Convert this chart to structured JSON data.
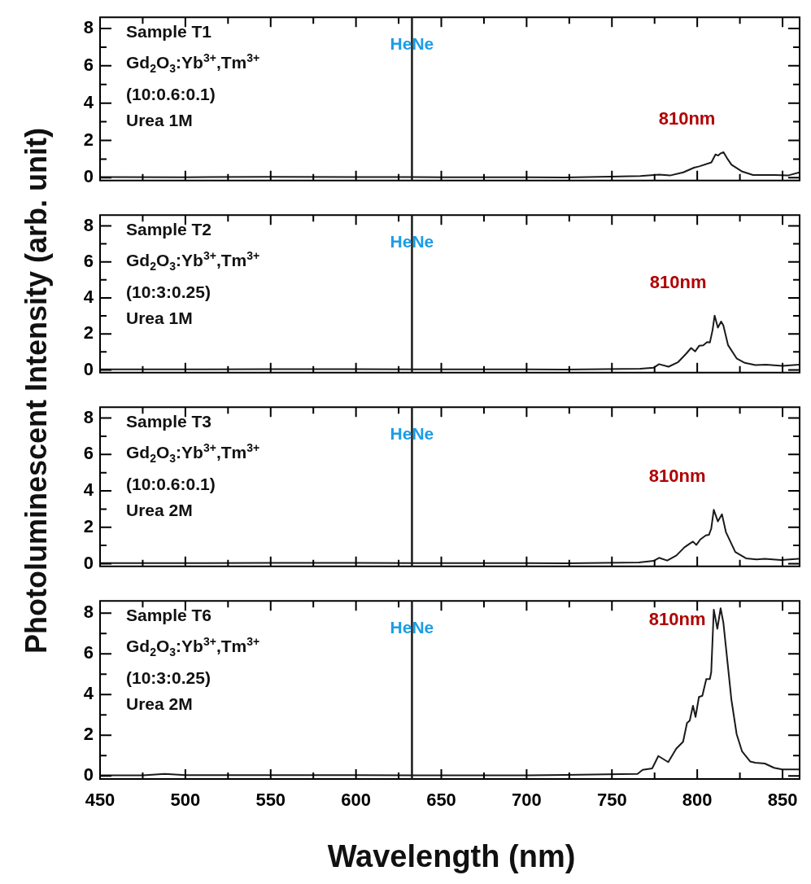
{
  "chart_data": [
    {
      "type": "line",
      "ylabel": "Photoluminescent Intensity (arb. unit)",
      "xlim": [
        450,
        860
      ],
      "ylim": [
        -0.15,
        8.6
      ],
      "xticks": [
        450,
        {
          "value": 475,
          "label": null
        },
        500,
        {
          "value": 525,
          "label": null
        },
        550,
        {
          "value": 575,
          "label": null
        },
        600,
        {
          "value": 625,
          "label": null
        },
        650,
        {
          "value": 675,
          "label": null
        },
        700,
        {
          "value": 725,
          "label": null
        },
        750,
        {
          "value": 775,
          "label": null
        },
        800,
        {
          "value": 825,
          "label": null
        },
        850
      ],
      "yticks": [
        0,
        {
          "value": 1,
          "label": null
        },
        2,
        {
          "value": 3,
          "label": null
        },
        4,
        {
          "value": 5,
          "label": null
        },
        6,
        {
          "value": 7,
          "label": null
        },
        8
      ],
      "tick_labels": "y",
      "grid": false,
      "marker": "none",
      "annotations": [
        "Sample T1",
        "Gd$_{2}$O$_{3}$:Yb$^{3+}$,Tm$^{3+}$",
        "(10:0.6:0.1)",
        "Urea 1M",
        {
          "text": "810nm",
          "x": 815.4,
          "y": 1.37
        }
      ],
      "ref_lines": [
        {
          "axis": "x",
          "value": 632.8,
          "label": "HeNe",
          "color": "#1a1a1a"
        }
      ],
      "series": [
        {
          "color": "#1a1a1a",
          "x": [
            450,
            500,
            550,
            600,
            650,
            700,
            722.5,
            766.7,
            777.7,
            784,
            791.8,
            798.1,
            801.2,
            808.3,
            810.7,
            812.3,
            813.8,
            815.4,
            817.8,
            820.1,
            826.4,
            832.7,
            845.3,
            853.1,
            860
          ],
          "values": [
            0.04,
            0.03,
            0.05,
            0.04,
            0.03,
            0.03,
            0.02,
            0.09,
            0.17,
            0.12,
            0.29,
            0.54,
            0.61,
            0.82,
            1.25,
            1.19,
            1.31,
            1.37,
            1.0,
            0.7,
            0.33,
            0.15,
            0.15,
            0.12,
            0.29
          ]
        }
      ]
    },
    {
      "type": "line",
      "xlim": [
        450,
        860
      ],
      "ylim": [
        -0.15,
        8.6
      ],
      "xticks": [
        450,
        {
          "value": 475,
          "label": null
        },
        500,
        {
          "value": 525,
          "label": null
        },
        550,
        {
          "value": 575,
          "label": null
        },
        600,
        {
          "value": 625,
          "label": null
        },
        650,
        {
          "value": 675,
          "label": null
        },
        700,
        {
          "value": 725,
          "label": null
        },
        750,
        {
          "value": 775,
          "label": null
        },
        800,
        {
          "value": 825,
          "label": null
        },
        850
      ],
      "yticks": [
        0,
        {
          "value": 1,
          "label": null
        },
        2,
        {
          "value": 3,
          "label": null
        },
        4,
        {
          "value": 5,
          "label": null
        },
        6,
        {
          "value": 7,
          "label": null
        },
        8
      ],
      "tick_labels": "y",
      "grid": false,
      "marker": "none",
      "annotations": [
        "Sample T2",
        "Gd$_{2}$O$_{3}$:Yb$^{3+}$,Tm$^{3+}$",
        "(10:3:0.25)",
        "Urea 1M",
        {
          "text": "810nm",
          "x": 810.2,
          "y": 3.02
        }
      ],
      "ref_lines": [
        {
          "axis": "x",
          "value": 632.8,
          "label": "HeNe",
          "color": "#1a1a1a"
        }
      ],
      "series": [
        {
          "color": "#1a1a1a",
          "x": [
            450,
            500,
            550,
            600,
            650,
            700,
            722.5,
            766.6,
            774.4,
            777.6,
            783.2,
            788.6,
            793.3,
            796.4,
            798.8,
            801.1,
            803.5,
            805.8,
            807.4,
            809,
            810.2,
            812.1,
            814,
            815.3,
            818.1,
            823.1,
            827.9,
            834.1,
            840.4,
            849.9,
            859.3,
            860
          ],
          "values": [
            0.03,
            0.03,
            0.04,
            0.04,
            0.03,
            0.03,
            0.02,
            0.07,
            0.12,
            0.32,
            0.18,
            0.42,
            0.88,
            1.22,
            1.03,
            1.34,
            1.37,
            1.55,
            1.52,
            2.22,
            3.02,
            2.35,
            2.69,
            2.47,
            1.37,
            0.64,
            0.39,
            0.27,
            0.29,
            0.23,
            0.29,
            0.3
          ]
        }
      ]
    },
    {
      "type": "line",
      "xlim": [
        450,
        860
      ],
      "ylim": [
        -0.15,
        8.6
      ],
      "xticks": [
        450,
        {
          "value": 475,
          "label": null
        },
        500,
        {
          "value": 525,
          "label": null
        },
        550,
        {
          "value": 575,
          "label": null
        },
        600,
        {
          "value": 625,
          "label": null
        },
        650,
        {
          "value": 675,
          "label": null
        },
        700,
        {
          "value": 725,
          "label": null
        },
        750,
        {
          "value": 775,
          "label": null
        },
        800,
        {
          "value": 825,
          "label": null
        },
        850
      ],
      "yticks": [
        0,
        {
          "value": 1,
          "label": null
        },
        2,
        {
          "value": 3,
          "label": null
        },
        4,
        {
          "value": 5,
          "label": null
        },
        6,
        {
          "value": 7,
          "label": null
        },
        8
      ],
      "tick_labels": "y",
      "grid": false,
      "marker": "none",
      "annotations": [
        "Sample T3",
        "Gd$_{2}$O$_{3}$:Yb$^{3+}$,Tm$^{3+}$",
        "(10:0.6:0.1)",
        "Urea 2M",
        {
          "text": "810nm",
          "x": 809.7,
          "y": 2.96
        }
      ],
      "ref_lines": [
        {
          "axis": "x",
          "value": 632.8,
          "label": "HeNe",
          "color": "#1a1a1a"
        }
      ],
      "series": [
        {
          "color": "#1a1a1a",
          "x": [
            450,
            500,
            550,
            600,
            650,
            700,
            722.5,
            765.8,
            774.4,
            777.6,
            782.4,
            787.8,
            792.5,
            795.6,
            797.5,
            799.5,
            801.8,
            805,
            806.9,
            808.2,
            809.7,
            812.1,
            814.5,
            816.8,
            822.3,
            828.6,
            834.8,
            839.6,
            849.1,
            859.3,
            860
          ],
          "values": [
            0.03,
            0.03,
            0.04,
            0.04,
            0.03,
            0.03,
            0.02,
            0.06,
            0.15,
            0.32,
            0.17,
            0.45,
            0.9,
            1.1,
            1.21,
            1.03,
            1.33,
            1.55,
            1.59,
            1.92,
            2.96,
            2.32,
            2.71,
            1.74,
            0.64,
            0.29,
            0.23,
            0.27,
            0.2,
            0.27,
            0.27
          ]
        }
      ]
    },
    {
      "type": "line",
      "xlabel": "Wavelength (nm)",
      "xlim": [
        450,
        860
      ],
      "ylim": [
        -0.15,
        8.6
      ],
      "xticks": [
        450,
        {
          "value": 475,
          "label": null
        },
        500,
        {
          "value": 525,
          "label": null
        },
        550,
        {
          "value": 575,
          "label": null
        },
        600,
        {
          "value": 625,
          "label": null
        },
        650,
        {
          "value": 675,
          "label": null
        },
        700,
        {
          "value": 725,
          "label": null
        },
        750,
        {
          "value": 775,
          "label": null
        },
        800,
        {
          "value": 825,
          "label": null
        },
        850
      ],
      "yticks": [
        0,
        {
          "value": 1,
          "label": null
        },
        2,
        {
          "value": 3,
          "label": null
        },
        4,
        {
          "value": 5,
          "label": null
        },
        6,
        {
          "value": 7,
          "label": null
        },
        8
      ],
      "grid": false,
      "marker": "none",
      "annotations": [
        "Sample T6",
        "Gd$_{2}$O$_{3}$:Yb$^{3+}$,Tm$^{3+}$",
        "(10:3:0.25)",
        "Urea 2M",
        {
          "text": "810nm",
          "x": 809.7,
          "y": 8.17
        }
      ],
      "ref_lines": [
        {
          "axis": "x",
          "value": 632.8,
          "label": "HeNe",
          "color": "#1a1a1a"
        }
      ],
      "series": [
        {
          "color": "#1a1a1a",
          "x": [
            450,
            475,
            488,
            500,
            550,
            600,
            650,
            700,
            722.5,
            765,
            768,
            773.6,
            777.2,
            783,
            787.7,
            791.7,
            794,
            795.6,
            797.5,
            799,
            801,
            803,
            805.3,
            807.4,
            808.2,
            809.7,
            811.8,
            813.7,
            815.3,
            817.6,
            820,
            823.1,
            826.3,
            831,
            834,
            839.6,
            845,
            849.8,
            859.3,
            860
          ],
          "values": [
            0.03,
            0.03,
            0.1,
            0.04,
            0.04,
            0.04,
            0.03,
            0.03,
            0.05,
            0.1,
            0.3,
            0.37,
            0.98,
            0.68,
            1.34,
            1.68,
            2.6,
            2.72,
            3.45,
            2.9,
            3.88,
            3.94,
            4.76,
            4.76,
            5.1,
            8.17,
            7.23,
            8.24,
            7.54,
            5.7,
            3.76,
            2.05,
            1.2,
            0.71,
            0.65,
            0.61,
            0.4,
            0.32,
            0.32,
            0.32
          ]
        }
      ]
    }
  ]
}
